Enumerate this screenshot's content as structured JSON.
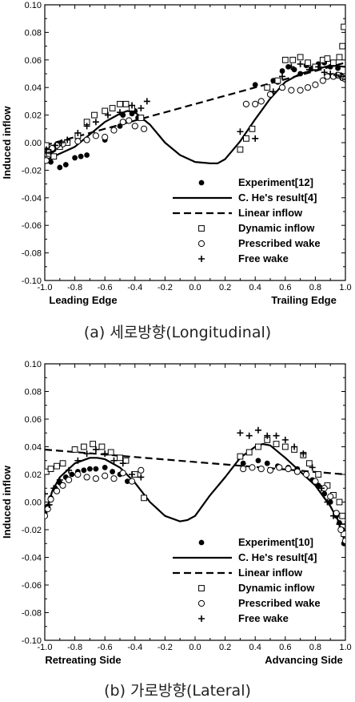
{
  "chart_data": [
    {
      "type": "scatter",
      "caption": "(a) 세로방향(Longitudinal)",
      "ylabel": "Induced inflow",
      "xlim": [
        -1.0,
        1.0
      ],
      "ylim": [
        -0.1,
        0.1
      ],
      "xticks": [
        "-1.0",
        "-0.8",
        "-0.6",
        "-0.4",
        "-0.2",
        "0.0",
        "0.2",
        "0.4",
        "0.6",
        "0.8",
        "1.0"
      ],
      "yticks": [
        "0.10",
        "0.08",
        "0.06",
        "0.04",
        "0.02",
        "0.00",
        "-0.02",
        "-0.04",
        "-0.06",
        "-0.08",
        "-0.10"
      ],
      "side_left": "Leading Edge",
      "side_right": "Trailing Edge",
      "series": [
        {
          "name": "Experiment[12]",
          "marker": "filled-circle",
          "x": [
            -0.98,
            -0.96,
            -0.94,
            -0.9,
            -0.86,
            -0.8,
            -0.76,
            -0.72,
            -0.6,
            -0.5,
            -0.48,
            -0.42,
            -0.4,
            -0.38,
            0.4,
            0.52,
            0.55,
            0.58,
            0.62,
            0.66,
            0.7,
            0.74,
            0.78,
            0.82,
            0.86,
            0.9,
            0.92,
            0.95,
            0.97,
            0.99
          ],
          "y": [
            -0.007,
            -0.014,
            -0.005,
            -0.018,
            -0.016,
            -0.011,
            -0.01,
            -0.009,
            0.002,
            0.012,
            0.02,
            0.021,
            0.023,
            0.018,
            0.042,
            0.045,
            0.044,
            0.052,
            0.055,
            0.053,
            0.05,
            0.056,
            0.054,
            0.057,
            0.058,
            0.055,
            0.057,
            0.054,
            0.049,
            0.047
          ]
        },
        {
          "name": "Dynamic inflow",
          "marker": "open-square",
          "x": [
            -0.99,
            -0.97,
            -0.94,
            -0.9,
            -0.85,
            -0.78,
            -0.72,
            -0.67,
            -0.6,
            -0.55,
            -0.5,
            -0.46,
            -0.42,
            -0.36,
            0.3,
            0.34,
            0.38,
            0.48,
            0.55,
            0.6,
            0.65,
            0.7,
            0.75,
            0.8,
            0.85,
            0.88,
            0.92,
            0.96,
            0.98,
            0.99
          ],
          "y": [
            -0.002,
            -0.008,
            -0.01,
            -0.003,
            0.0,
            0.005,
            0.015,
            0.02,
            0.023,
            0.025,
            0.028,
            0.028,
            0.025,
            0.018,
            -0.005,
            0.003,
            0.01,
            0.04,
            0.045,
            0.06,
            0.06,
            0.062,
            0.058,
            0.055,
            0.06,
            0.061,
            0.058,
            0.062,
            0.07,
            0.084
          ]
        },
        {
          "name": "Prescribed wake",
          "marker": "open-circle",
          "x": [
            -0.99,
            -0.97,
            -0.95,
            -0.92,
            -0.88,
            -0.78,
            -0.72,
            -0.66,
            -0.6,
            -0.54,
            -0.48,
            -0.44,
            -0.4,
            -0.34,
            0.34,
            0.4,
            0.44,
            0.5,
            0.58,
            0.64,
            0.7,
            0.75,
            0.8,
            0.85,
            0.88,
            0.92,
            0.95,
            0.98,
            1.0
          ],
          "y": [
            -0.013,
            -0.006,
            -0.004,
            -0.002,
            -0.001,
            0.001,
            0.002,
            0.005,
            0.004,
            0.009,
            0.015,
            0.016,
            0.012,
            0.01,
            0.028,
            0.028,
            0.03,
            0.035,
            0.04,
            0.038,
            0.038,
            0.04,
            0.042,
            0.045,
            0.048,
            0.048,
            0.049,
            0.047,
            0.046
          ]
        },
        {
          "name": "Free wake",
          "marker": "plus",
          "x": [
            -0.99,
            -0.96,
            -0.93,
            -0.89,
            -0.85,
            -0.78,
            -0.72,
            -0.66,
            -0.58,
            -0.5,
            -0.42,
            -0.36,
            -0.32,
            0.3,
            0.4,
            0.52,
            0.58,
            0.64,
            0.7,
            0.76,
            0.82,
            0.86,
            0.9,
            0.94,
            0.97,
            1.0
          ],
          "y": [
            -0.005,
            -0.007,
            -0.002,
            0.0,
            0.002,
            0.007,
            0.012,
            0.015,
            0.02,
            0.022,
            0.027,
            0.025,
            0.03,
            0.008,
            0.003,
            0.037,
            0.048,
            0.055,
            0.057,
            0.053,
            0.055,
            0.051,
            0.05,
            0.049,
            0.048,
            0.046
          ]
        },
        {
          "name": "C. He's result[4]",
          "line": "solid",
          "x": [
            -1.0,
            -0.9,
            -0.8,
            -0.7,
            -0.6,
            -0.5,
            -0.45,
            -0.4,
            -0.3,
            -0.2,
            -0.1,
            0.0,
            0.1,
            0.15,
            0.2,
            0.3,
            0.4,
            0.5,
            0.6,
            0.7,
            0.8,
            0.9,
            1.0
          ],
          "y": [
            -0.013,
            -0.008,
            -0.003,
            0.006,
            0.015,
            0.021,
            0.023,
            0.022,
            0.013,
            0.0,
            -0.009,
            -0.014,
            -0.015,
            -0.015,
            -0.012,
            0.001,
            0.017,
            0.032,
            0.044,
            0.05,
            0.053,
            0.056,
            0.055
          ]
        },
        {
          "name": "Linear inflow",
          "line": "dashed",
          "x": [
            -1.0,
            1.0
          ],
          "y": [
            -0.002,
            0.058
          ]
        }
      ]
    },
    {
      "type": "scatter",
      "caption": "(b) 가로방향(Lateral)",
      "ylabel": "Induced inflow",
      "xlim": [
        -1.0,
        1.0
      ],
      "ylim": [
        -0.1,
        0.1
      ],
      "xticks": [
        "-1.0",
        "-0.8",
        "-0.6",
        "-0.4",
        "-0.2",
        "0.0",
        "0.2",
        "0.4",
        "0.6",
        "0.8",
        "1.0"
      ],
      "yticks": [
        "0.10",
        "0.08",
        "0.06",
        "0.04",
        "0.02",
        "0.00",
        "-0.02",
        "-0.04",
        "-0.06",
        "-0.08",
        "-0.10"
      ],
      "side_left": "Retreating Side",
      "side_right": "Advancing Side",
      "series": [
        {
          "name": "Experiment[10]",
          "marker": "filled-circle",
          "x": [
            -1.0,
            -0.98,
            -0.96,
            -0.93,
            -0.9,
            -0.86,
            -0.82,
            -0.78,
            -0.74,
            -0.7,
            -0.66,
            -0.6,
            -0.55,
            -0.5,
            -0.45,
            0.32,
            0.42,
            0.48,
            0.55,
            0.62,
            0.68,
            0.74,
            0.78,
            0.82,
            0.86,
            0.9,
            0.94,
            0.96,
            0.98,
            0.99
          ],
          "y": [
            -0.008,
            -0.003,
            0.003,
            0.01,
            0.014,
            0.018,
            0.02,
            0.022,
            0.023,
            0.024,
            0.024,
            0.025,
            0.022,
            0.02,
            0.015,
            0.028,
            0.03,
            0.028,
            0.026,
            0.025,
            0.024,
            0.02,
            0.016,
            0.012,
            0.006,
            0.0,
            -0.01,
            -0.015,
            -0.02,
            -0.03
          ]
        },
        {
          "name": "Dynamic inflow",
          "marker": "open-square",
          "x": [
            -0.99,
            -0.96,
            -0.92,
            -0.88,
            -0.8,
            -0.74,
            -0.68,
            -0.62,
            -0.56,
            -0.5,
            -0.46,
            -0.4,
            -0.34,
            0.3,
            0.36,
            0.42,
            0.48,
            0.54,
            0.6,
            0.66,
            0.72,
            0.76,
            0.82,
            0.88,
            0.92,
            0.96,
            0.98,
            0.99
          ],
          "y": [
            0.022,
            0.024,
            0.026,
            0.028,
            0.038,
            0.04,
            0.042,
            0.04,
            0.036,
            0.032,
            0.03,
            0.02,
            0.003,
            0.033,
            0.036,
            0.04,
            0.045,
            0.042,
            0.04,
            0.038,
            0.034,
            0.028,
            0.02,
            0.012,
            0.005,
            0.0,
            -0.01,
            -0.023
          ]
        },
        {
          "name": "Prescribed wake",
          "marker": "open-circle",
          "x": [
            -1.0,
            -0.98,
            -0.96,
            -0.92,
            -0.88,
            -0.84,
            -0.78,
            -0.72,
            -0.66,
            -0.6,
            -0.54,
            -0.48,
            -0.42,
            -0.36,
            0.32,
            0.38,
            0.44,
            0.5,
            0.56,
            0.62,
            0.68,
            0.74,
            0.8,
            0.86,
            0.9,
            0.94,
            0.97,
            1.0
          ],
          "y": [
            -0.01,
            -0.005,
            0.002,
            0.008,
            0.012,
            0.016,
            0.02,
            0.018,
            0.017,
            0.019,
            0.017,
            0.021,
            0.015,
            0.023,
            0.024,
            0.025,
            0.024,
            0.023,
            0.025,
            0.024,
            0.022,
            0.02,
            0.015,
            0.01,
            0.004,
            -0.008,
            -0.02,
            -0.028
          ]
        },
        {
          "name": "Free wake",
          "marker": "plus",
          "x": [
            -1.0,
            -0.97,
            -0.94,
            -0.9,
            -0.84,
            -0.78,
            -0.72,
            -0.66,
            -0.6,
            -0.54,
            -0.48,
            -0.42,
            -0.36,
            0.3,
            0.36,
            0.42,
            0.48,
            0.54,
            0.6,
            0.66,
            0.72,
            0.78,
            0.84,
            0.88,
            0.92,
            0.96,
            1.0
          ],
          "y": [
            0.006,
            -0.002,
            0.01,
            0.016,
            0.023,
            0.03,
            0.035,
            0.038,
            0.035,
            0.03,
            0.028,
            0.02,
            0.018,
            0.05,
            0.048,
            0.052,
            0.048,
            0.048,
            0.045,
            0.04,
            0.035,
            0.025,
            0.01,
            0.0,
            -0.01,
            -0.016,
            -0.016
          ]
        },
        {
          "name": "C. He's result[4]",
          "line": "solid",
          "x": [
            -1.0,
            -0.95,
            -0.9,
            -0.8,
            -0.7,
            -0.65,
            -0.6,
            -0.5,
            -0.4,
            -0.3,
            -0.2,
            -0.1,
            -0.05,
            0.0,
            0.1,
            0.2,
            0.3,
            0.4,
            0.45,
            0.5,
            0.6,
            0.7,
            0.8,
            0.9,
            0.95,
            1.0
          ],
          "y": [
            -0.01,
            0.008,
            0.018,
            0.028,
            0.032,
            0.032,
            0.031,
            0.025,
            0.014,
            0.0,
            -0.01,
            -0.014,
            -0.013,
            -0.01,
            0.005,
            0.018,
            0.032,
            0.04,
            0.042,
            0.041,
            0.032,
            0.022,
            0.012,
            -0.003,
            -0.013,
            -0.03
          ]
        },
        {
          "name": "Linear inflow",
          "line": "dashed",
          "x": [
            -1.0,
            1.0
          ],
          "y": [
            0.038,
            0.02
          ]
        }
      ]
    }
  ]
}
